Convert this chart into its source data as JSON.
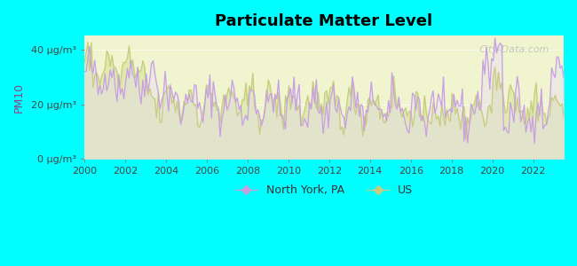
{
  "title": "Particulate Matter Level",
  "ylabel": "PM10",
  "background_color": "#00FFFF",
  "plot_bg_color": "#f0f5d0",
  "ny_color": "#c8a0e0",
  "us_color": "#c8cc80",
  "ylim": [
    0,
    45
  ],
  "yticks": [
    0,
    20,
    40
  ],
  "ytick_labels": [
    "0 μg/m³",
    "20 μg/m³",
    "40 μg/m³"
  ],
  "xstart": 2000,
  "xend": 2023,
  "watermark": "City-Data.com"
}
